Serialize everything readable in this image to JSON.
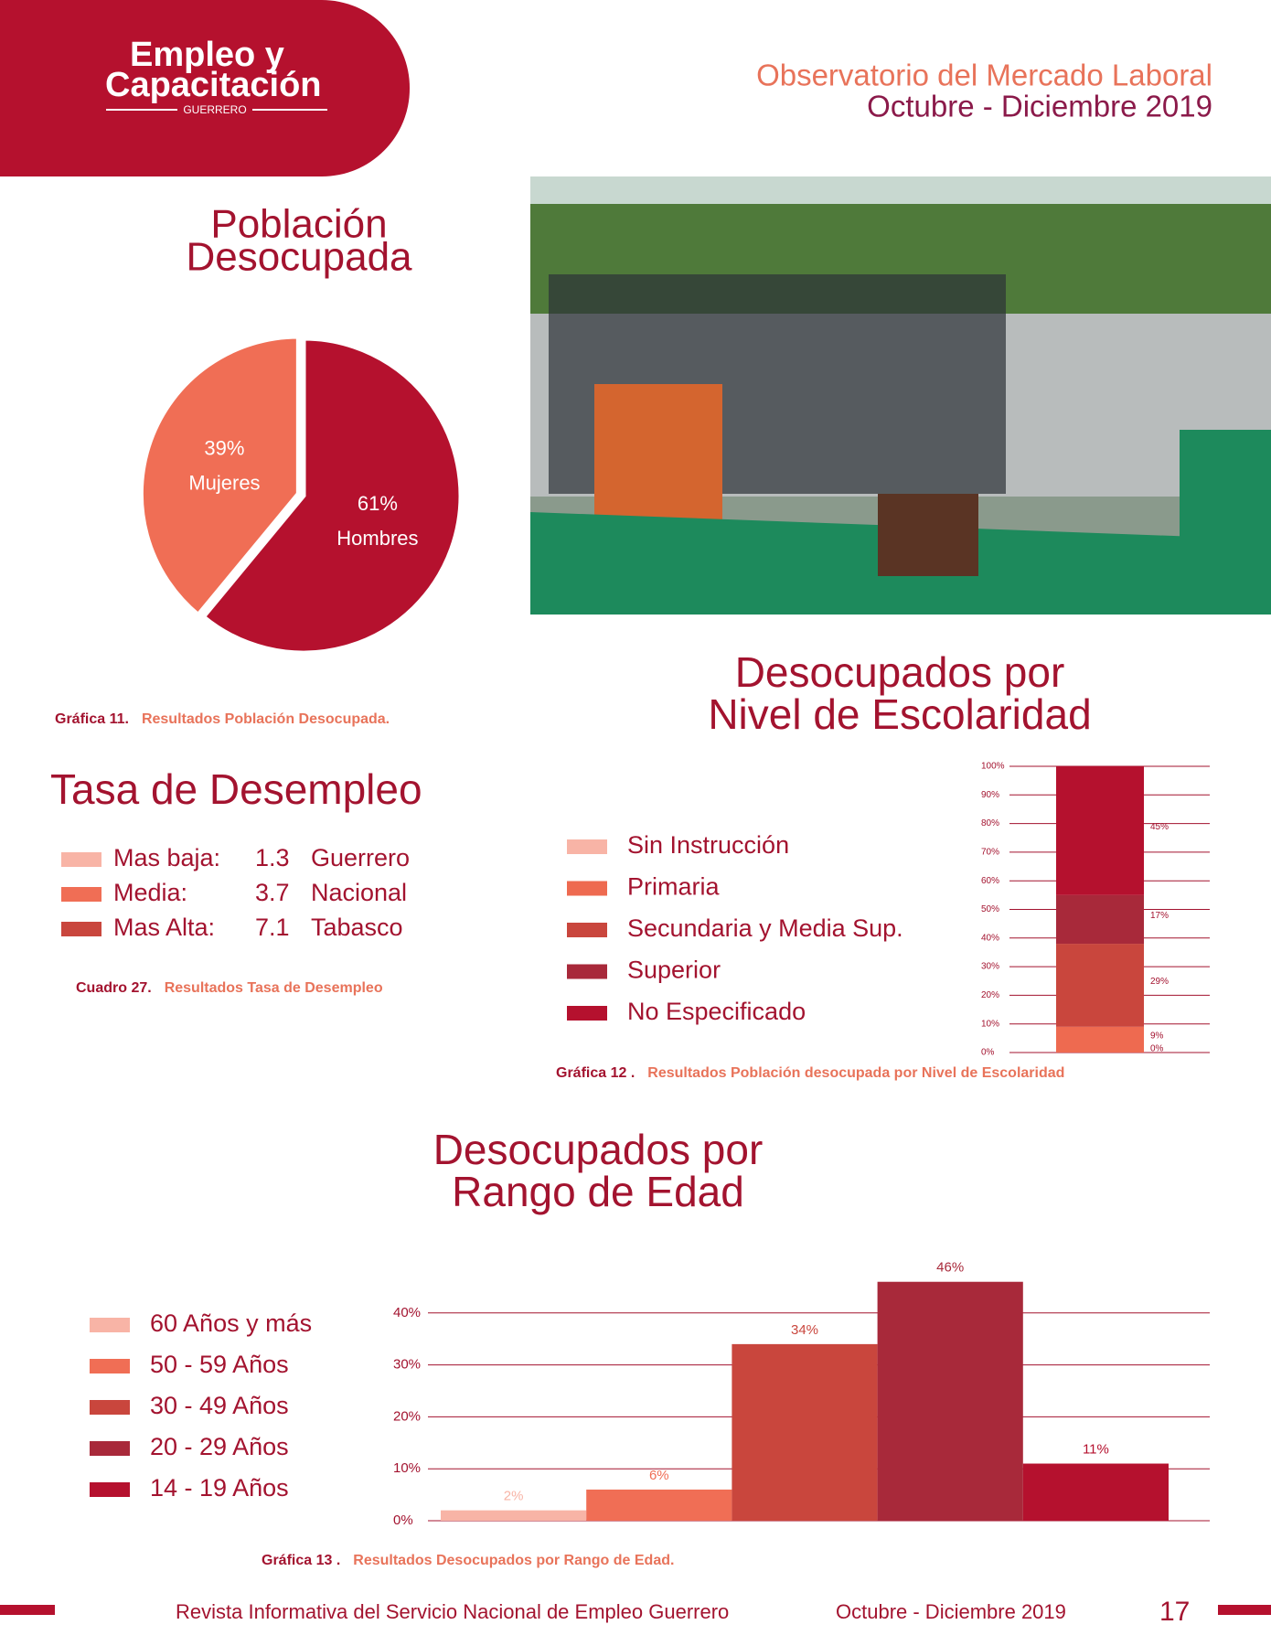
{
  "header": {
    "logo": [
      "Empleo y",
      "Capacitación",
      "GUERRERO"
    ],
    "title": "Observatorio del Mercado Laboral",
    "subtitle": "Octubre - Diciembre 2019"
  },
  "chart_data": [
    {
      "type": "pie",
      "title": [
        "Población",
        "Desocupada"
      ],
      "categories": [
        "Hombres",
        "Mujeres"
      ],
      "values": [
        61,
        39
      ],
      "value_labels": [
        "61%",
        "39%"
      ],
      "colors": [
        "#b5112e",
        "#f06e55"
      ],
      "caption": {
        "number": "Gráfica 11.",
        "text": "Resultados Población Desocupada."
      }
    },
    {
      "type": "stacked_bar",
      "title": [
        "Desocupados por",
        "Nivel de Escolaridad"
      ],
      "categories": [
        null
      ],
      "series": [
        {
          "name": "Sin Instrucción",
          "color": "#f8b4a6",
          "values": [
            0
          ],
          "value_labels": [
            "0%"
          ]
        },
        {
          "name": "Primaria",
          "color": "#ee6a50",
          "values": [
            9
          ],
          "value_labels": [
            "9%"
          ]
        },
        {
          "name": "Secundaria y Media Sup.",
          "color": "#c9463d",
          "values": [
            29
          ],
          "value_labels": [
            "29%"
          ]
        },
        {
          "name": "Superior",
          "color": "#a8293a",
          "values": [
            17
          ],
          "value_labels": [
            "17%"
          ]
        },
        {
          "name": "No Especificado",
          "color": "#b5112e",
          "values": [
            45
          ],
          "value_labels": [
            "45%"
          ]
        }
      ],
      "ylim": [
        0,
        100
      ],
      "yticks": [
        {
          "value": 0,
          "label": "0%"
        },
        {
          "value": 10,
          "label": "10%"
        },
        {
          "value": 20,
          "label": "20%"
        },
        {
          "value": 30,
          "label": "30%"
        },
        {
          "value": 40,
          "label": "40%"
        },
        {
          "value": 50,
          "label": "50%"
        },
        {
          "value": 60,
          "label": "60%"
        },
        {
          "value": 70,
          "label": "70%"
        },
        {
          "value": 80,
          "label": "80%"
        },
        {
          "value": 90,
          "label": "90%"
        },
        {
          "value": 100,
          "label": "100%"
        }
      ],
      "grid": true,
      "caption": {
        "number": "Gráfica 12 .",
        "text": "Resultados Población desocupada por Nivel de Escolaridad"
      }
    },
    {
      "type": "bar",
      "title": [
        "Desocupados por",
        "Rango de Edad"
      ],
      "categories": [
        "60 Años  y más",
        "50 - 59 Años",
        "30 - 49 Años",
        "20 - 29 Años",
        "14 - 19 Años"
      ],
      "values": [
        2,
        6,
        34,
        46,
        11
      ],
      "value_labels": [
        "2%",
        "6%",
        "34%",
        "46%",
        "11%"
      ],
      "colors": [
        "#f8b4a6",
        "#f06e55",
        "#c9463d",
        "#a8293a",
        "#b5112e"
      ],
      "ylim": [
        0,
        50
      ],
      "yticks": [
        {
          "value": 0,
          "label": "0%"
        },
        {
          "value": 10,
          "label": "10%"
        },
        {
          "value": 20,
          "label": "20%"
        },
        {
          "value": 30,
          "label": "30%"
        },
        {
          "value": 40,
          "label": "40%"
        }
      ],
      "grid": true,
      "caption": {
        "number": "Gráfica 13 .",
        "text": "Resultados Desocupados por Rango de Edad."
      }
    }
  ],
  "table": {
    "title": "Tasa de Desempleo",
    "rows": [
      [
        "Mas baja:",
        1.3,
        "Guerrero"
      ],
      [
        "Media:",
        3.7,
        "Nacional"
      ],
      [
        "Mas Alta:",
        7.1,
        "Tabasco"
      ]
    ],
    "colors": [
      "#f8b4a6",
      "#f06e55",
      "#c9463d"
    ],
    "caption": {
      "number": "Cuadro 27.",
      "text": "Resultados Tasa de Desempleo"
    }
  },
  "footer": {
    "text": "Revista Informativa del Servicio Nacional de Empleo Guerrero",
    "period": "Octubre - Diciembre 2019",
    "page": 17
  }
}
